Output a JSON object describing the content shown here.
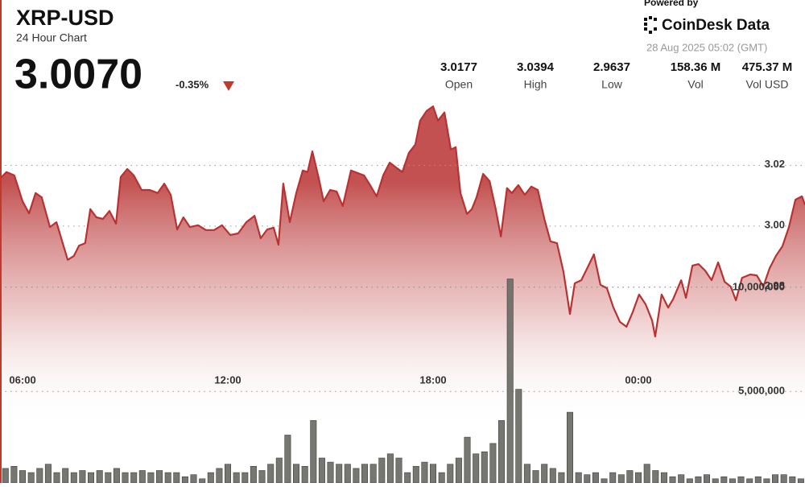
{
  "header": {
    "symbol": "XRP-USD",
    "subtitle": "24 Hour Chart",
    "price": "3.0070",
    "change": "-0.35%",
    "powered_by": "Powered by",
    "brand": "CoinDesk Data",
    "timestamp": "28 Aug 2025 05:02 (GMT)",
    "stats": [
      {
        "value": "3.0177",
        "label": "Open"
      },
      {
        "value": "3.0394",
        "label": "High"
      },
      {
        "value": "2.9637",
        "label": "Low"
      },
      {
        "value": "158.36 M",
        "label": "Vol"
      },
      {
        "value": "475.37 M",
        "label": "Vol USD"
      }
    ]
  },
  "chart_data": [
    {
      "type": "line",
      "color": "#b83232",
      "xlim": [
        5.34,
        28.87
      ],
      "xticks": [
        {
          "value": 6,
          "label": "06:00"
        },
        {
          "value": 12,
          "label": "12:00"
        },
        {
          "value": 18,
          "label": "18:00"
        },
        {
          "value": 24,
          "label": "00:00"
        }
      ],
      "ylim": [
        2.9155,
        3.0744
      ],
      "yticks": [
        2.98,
        {
          "value": 3,
          "label": "3.00"
        },
        3.02
      ],
      "grid": true,
      "x": [
        5.34,
        5.53,
        5.76,
        6.0,
        6.19,
        6.38,
        6.56,
        6.8,
        6.99,
        7.32,
        7.5,
        7.65,
        7.83,
        7.98,
        8.16,
        8.35,
        8.54,
        8.73,
        8.87,
        9.06,
        9.25,
        9.48,
        9.72,
        9.95,
        10.14,
        10.33,
        10.52,
        10.7,
        10.89,
        11.13,
        11.36,
        11.6,
        11.83,
        12.07,
        12.3,
        12.54,
        12.78,
        12.96,
        13.15,
        13.34,
        13.48,
        13.62,
        13.81,
        14.0,
        14.19,
        14.33,
        14.47,
        14.66,
        14.8,
        14.99,
        15.18,
        15.36,
        15.6,
        15.79,
        15.98,
        16.16,
        16.35,
        16.54,
        16.73,
        16.92,
        17.1,
        17.29,
        17.48,
        17.62,
        17.81,
        18.0,
        18.14,
        18.33,
        18.52,
        18.66,
        18.8,
        18.99,
        19.13,
        19.27,
        19.46,
        19.65,
        19.83,
        19.98,
        20.16,
        20.3,
        20.49,
        20.68,
        20.87,
        21.06,
        21.25,
        21.43,
        21.62,
        21.81,
        22.0,
        22.14,
        22.33,
        22.52,
        22.7,
        22.89,
        23.08,
        23.27,
        23.46,
        23.65,
        23.83,
        24.02,
        24.21,
        24.4,
        24.49,
        24.68,
        24.87,
        25.01,
        25.25,
        25.39,
        25.58,
        25.76,
        25.95,
        26.14,
        26.33,
        26.52,
        26.7,
        26.85,
        27.03,
        27.27,
        27.46,
        27.65,
        27.83,
        28.02,
        28.21,
        28.4,
        28.59,
        28.78,
        28.87
      ],
      "values": [
        3.0156,
        3.0178,
        3.0167,
        3.0082,
        3.0042,
        3.0109,
        3.0095,
        2.9997,
        3.0013,
        2.9889,
        2.9902,
        2.9936,
        2.9944,
        3.0056,
        3.0029,
        3.0024,
        3.005,
        3.0008,
        3.0162,
        3.0188,
        3.0167,
        3.0119,
        3.0119,
        3.0109,
        3.014,
        3.0103,
        2.9989,
        3.0029,
        2.9997,
        3.0003,
        2.9987,
        2.9987,
        3.0003,
        2.9971,
        2.9976,
        3.0013,
        3.0034,
        2.996,
        2.9989,
        2.9995,
        2.9939,
        3.014,
        3.0013,
        3.0109,
        3.0183,
        3.0178,
        3.0246,
        3.0156,
        3.0082,
        3.0119,
        3.0114,
        3.0066,
        3.0183,
        3.0175,
        3.0167,
        3.0135,
        3.0098,
        3.0167,
        3.0209,
        3.0193,
        3.0178,
        3.0241,
        3.0268,
        3.0347,
        3.0379,
        3.0394,
        3.0347,
        3.0374,
        3.0252,
        3.026,
        3.0109,
        3.004,
        3.0056,
        3.0095,
        3.0172,
        3.0148,
        3.0056,
        2.9966,
        3.0125,
        3.0109,
        3.0135,
        3.0103,
        3.013,
        3.0119,
        3.0024,
        2.995,
        2.9944,
        2.9849,
        2.9711,
        2.9812,
        2.9822,
        2.9865,
        2.9907,
        2.9807,
        2.9796,
        2.9732,
        2.9685,
        2.9669,
        2.9716,
        2.9775,
        2.9743,
        2.969,
        2.9637,
        2.9775,
        2.9732,
        2.9759,
        2.9822,
        2.9764,
        2.987,
        2.9875,
        2.9854,
        2.9822,
        2.9881,
        2.9817,
        2.9801,
        2.9756,
        2.983,
        2.9841,
        2.9838,
        2.9801,
        2.986,
        2.9902,
        2.9934,
        2.9997,
        3.0087,
        3.0098,
        3.007
      ]
    },
    {
      "type": "bar",
      "color": "#6b6b66",
      "xlim": [
        5.34,
        28.87
      ],
      "ylim": [
        600000,
        23800000
      ],
      "yticks": [
        {
          "value": 5000000,
          "label": "5,000,000"
        },
        {
          "value": 10000000,
          "label": "10,000,000"
        }
      ],
      "grid": true,
      "x": [
        5.5,
        5.75,
        6,
        6.25,
        6.5,
        6.75,
        7,
        7.25,
        7.5,
        7.75,
        8,
        8.25,
        8.5,
        8.75,
        9,
        9.25,
        9.5,
        9.75,
        10,
        10.25,
        10.5,
        10.75,
        11,
        11.25,
        11.5,
        11.75,
        12,
        12.25,
        12.5,
        12.75,
        13,
        13.25,
        13.5,
        13.75,
        14,
        14.25,
        14.5,
        14.75,
        15,
        15.25,
        15.5,
        15.75,
        16,
        16.25,
        16.5,
        16.75,
        17,
        17.25,
        17.5,
        17.75,
        18,
        18.25,
        18.5,
        18.75,
        19,
        19.25,
        19.5,
        19.75,
        20,
        20.25,
        20.5,
        20.75,
        21,
        21.25,
        21.5,
        21.75,
        22,
        22.25,
        22.5,
        22.75,
        23,
        23.25,
        23.5,
        23.75,
        24,
        24.25,
        24.5,
        24.75,
        25,
        25.25,
        25.5,
        25.75,
        26,
        26.25,
        26.5,
        26.75,
        27,
        27.25,
        27.5,
        27.75,
        28,
        28.25,
        28.5,
        28.75
      ],
      "values": [
        1300000,
        1400000,
        1200000,
        1100000,
        1300000,
        1500000,
        1100000,
        1300000,
        1100000,
        1200000,
        1100000,
        1200000,
        1100000,
        1300000,
        1100000,
        1100000,
        1200000,
        1100000,
        1200000,
        1100000,
        1100000,
        900000,
        1000000,
        800000,
        1100000,
        1300000,
        1500000,
        1100000,
        1100000,
        1400000,
        1200000,
        1500000,
        1800000,
        2900000,
        1500000,
        1400000,
        3600000,
        1800000,
        1600000,
        1500000,
        1500000,
        1300000,
        1500000,
        1500000,
        1800000,
        2000000,
        1800000,
        1100000,
        1400000,
        1600000,
        1500000,
        1100000,
        1500000,
        1800000,
        2800000,
        2000000,
        2100000,
        2500000,
        3600000,
        10400000,
        5100000,
        1500000,
        1200000,
        1500000,
        1300000,
        1100000,
        4000000,
        1100000,
        1000000,
        1100000,
        800000,
        1100000,
        1000000,
        1200000,
        1100000,
        1500000,
        1200000,
        1100000,
        900000,
        1000000,
        800000,
        900000,
        1000000,
        800000,
        900000,
        800000,
        900000,
        800000,
        900000,
        800000,
        1000000,
        1000000,
        900000,
        800000
      ]
    }
  ]
}
